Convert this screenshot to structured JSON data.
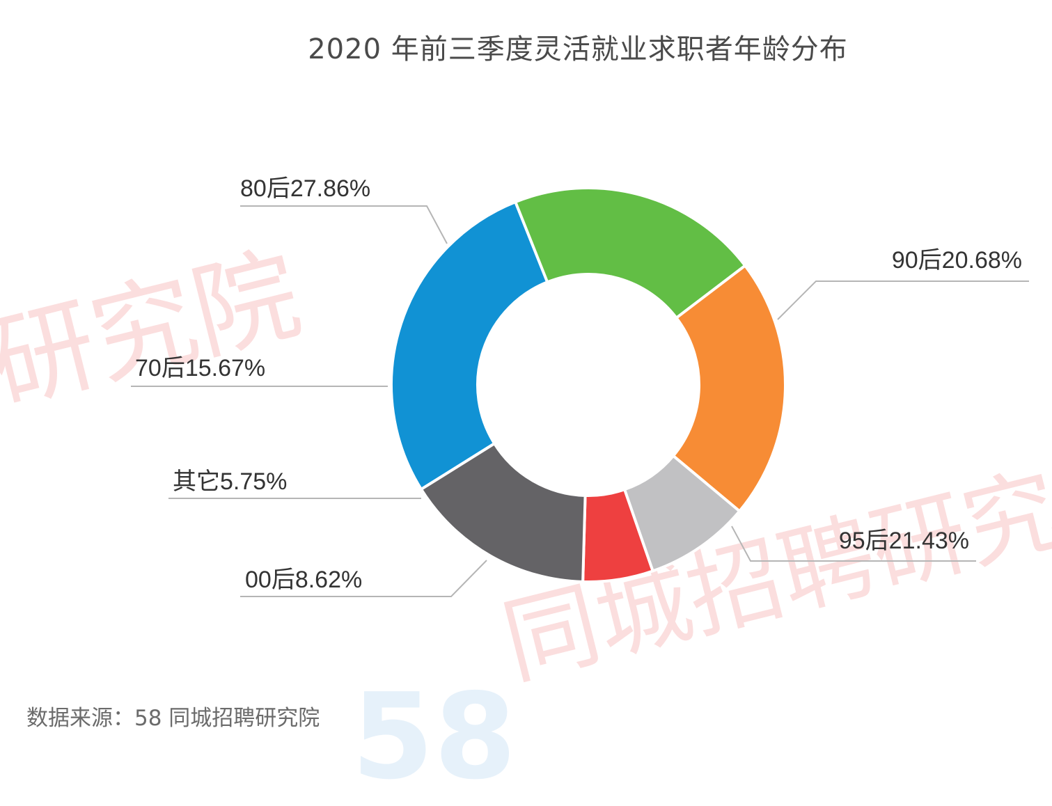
{
  "title": "2020 年前三季度灵活就业求职者年龄分布",
  "source": "数据来源：58 同城招聘研究院",
  "watermark": {
    "left_text": "研究院",
    "right_text": "同城招聘研究",
    "logo_text": "58"
  },
  "chart_data": {
    "type": "pie",
    "donut": true,
    "title": "2020 年前三季度灵活就业求职者年龄分布",
    "labels": [
      "80后",
      "90后",
      "95后",
      "00后",
      "其它",
      "70后"
    ],
    "values": [
      27.86,
      20.68,
      21.43,
      8.62,
      5.75,
      15.67
    ],
    "display_labels": [
      "80后27.86%",
      "90后20.68%",
      "95后21.43%",
      "00后8.62%",
      "其它5.75%",
      "70后15.67%"
    ],
    "colors": [
      "#1192d4",
      "#62be45",
      "#f78c35",
      "#c1c1c3",
      "#ee4040",
      "#646366"
    ],
    "legend": "none"
  }
}
